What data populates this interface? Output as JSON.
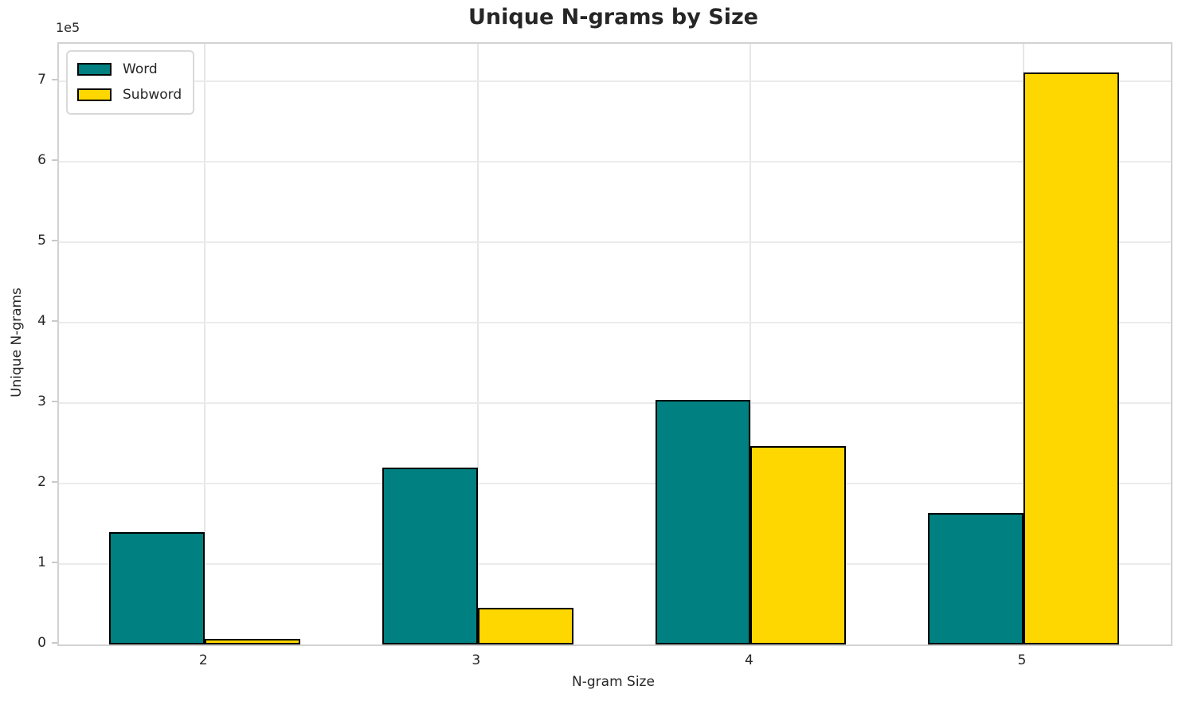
{
  "figure": {
    "title": "Unique N-grams by Size",
    "offset_text": "1e5"
  },
  "chart_data": {
    "type": "bar",
    "title": "Unique N-grams by Size",
    "xlabel": "N-gram Size",
    "ylabel": "Unique N-grams",
    "categories": [
      "2",
      "3",
      "4",
      "5"
    ],
    "series": [
      {
        "name": "Word",
        "color": "#008080",
        "values": [
          140000,
          220000,
          304000,
          163000
        ]
      },
      {
        "name": "Subword",
        "color": "#ffd700",
        "values": [
          7000,
          46000,
          247000,
          711000
        ]
      }
    ],
    "bar_edge_color": "#000000",
    "bar_width_units": 0.35,
    "xlim_units": [
      -0.535,
      3.54
    ],
    "ylim": [
      0,
      747000
    ],
    "yticks": {
      "values": [
        0,
        100000,
        200000,
        300000,
        400000,
        500000,
        600000,
        700000
      ],
      "labels": [
        "0",
        "1",
        "2",
        "3",
        "4",
        "5",
        "6",
        "7"
      ]
    },
    "y_scale_label": "1e5",
    "grid": true,
    "legend_position": "upper-left"
  }
}
